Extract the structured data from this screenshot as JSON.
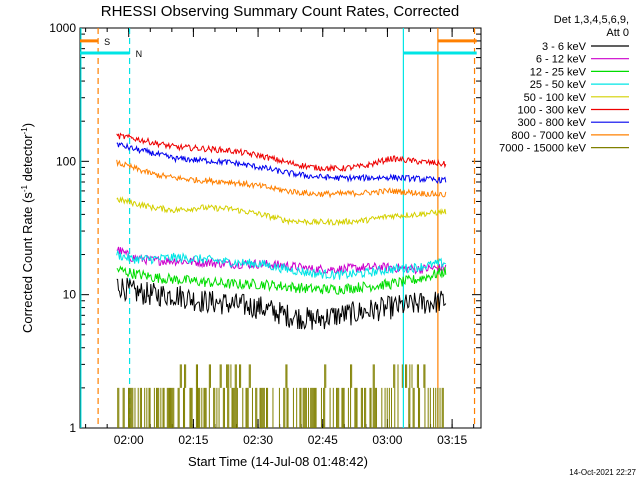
{
  "title": "RHESSI Observing Summary Count Rates, Corrected",
  "footer_timestamp": "14-Oct-2021 22:27",
  "chart_data": {
    "type": "line",
    "title": "RHESSI Observing Summary Count Rates, Corrected",
    "xlabel": "Start Time (14-Jul-08 01:48:42)",
    "ylabel": "Corrected Count Rate (s⁻¹ detector⁻¹)",
    "ylabel_main": "Corrected Count Rate (s",
    "ylabel_sup1": "-1",
    "ylabel_mid": " detector",
    "ylabel_sup2": "-1",
    "ylabel_end": ")",
    "yscale": "log",
    "ylim": [
      1,
      1000
    ],
    "xlim_minutes": [
      0,
      93
    ],
    "y_ticks": [
      {
        "v": 1,
        "label": "1"
      },
      {
        "v": 10,
        "label": "10"
      },
      {
        "v": 100,
        "label": "100"
      },
      {
        "v": 1000,
        "label": "1000"
      }
    ],
    "x_ticks": [
      {
        "m": 11.3,
        "label": "02:00"
      },
      {
        "m": 26.3,
        "label": "02:15"
      },
      {
        "m": 41.3,
        "label": "02:30"
      },
      {
        "m": 56.3,
        "label": "02:45"
      },
      {
        "m": 71.3,
        "label": "03:00"
      },
      {
        "m": 86.3,
        "label": "03:15"
      }
    ],
    "legend_header": [
      "Det 1,3,4,5,6,9,",
      "Att 0"
    ],
    "series": [
      {
        "name": "3 - 6 keV",
        "color": "#000000",
        "x": [
          8.5,
          12,
          17,
          22,
          28,
          35,
          42,
          48,
          54,
          60,
          63,
          66,
          72,
          78,
          85
        ],
        "y": [
          12,
          10.5,
          10,
          10,
          9,
          8.5,
          8,
          7,
          6.5,
          7,
          7.2,
          7.5,
          8,
          8.5,
          9
        ]
      },
      {
        "name": "6 - 12 keV",
        "color": "#cc00cc",
        "x": [
          8.5,
          12,
          17,
          22,
          28,
          35,
          42,
          48,
          54,
          60,
          66,
          72,
          78,
          85
        ],
        "y": [
          22,
          19,
          18,
          18,
          17.5,
          17,
          17,
          16.5,
          15.5,
          15.5,
          16,
          16,
          15.5,
          16
        ]
      },
      {
        "name": "12 - 25 keV",
        "color": "#00dd00",
        "x": [
          8.5,
          12,
          17,
          22,
          28,
          35,
          42,
          48,
          54,
          60,
          66,
          72,
          78,
          85
        ],
        "y": [
          15.5,
          14.5,
          13.5,
          13,
          12.5,
          12,
          12,
          11.5,
          11,
          11,
          11.5,
          12,
          13,
          15
        ]
      },
      {
        "name": "25 - 50 keV",
        "color": "#00e5e5",
        "x": [
          8.5,
          12,
          17,
          22,
          28,
          35,
          42,
          48,
          54,
          60,
          66,
          72,
          78,
          85
        ],
        "y": [
          20,
          18.5,
          18.5,
          19,
          18.5,
          17.5,
          17,
          15.5,
          14.5,
          14,
          14.5,
          15.5,
          16,
          17.5
        ]
      },
      {
        "name": "50 - 100 keV",
        "color": "#d4d000",
        "x": [
          8.5,
          12,
          17,
          22,
          28,
          35,
          42,
          48,
          54,
          60,
          66,
          72,
          78,
          85
        ],
        "y": [
          52,
          49,
          45,
          43,
          45,
          44,
          40,
          36,
          35,
          35,
          36,
          39,
          40,
          42
        ]
      },
      {
        "name": "100 - 300 keV",
        "color": "#ee0000",
        "x": [
          8.5,
          12,
          17,
          22,
          28,
          35,
          42,
          48,
          54,
          60,
          66,
          72,
          78,
          85
        ],
        "y": [
          155,
          150,
          138,
          128,
          125,
          120,
          110,
          98,
          90,
          88,
          92,
          105,
          100,
          95
        ]
      },
      {
        "name": "300 - 800 keV",
        "color": "#0000ee",
        "x": [
          8.5,
          12,
          17,
          22,
          28,
          35,
          42,
          48,
          54,
          60,
          66,
          72,
          78,
          85
        ],
        "y": [
          135,
          125,
          115,
          105,
          102,
          98,
          90,
          82,
          77,
          75,
          75,
          76,
          74,
          72
        ]
      },
      {
        "name": "800 - 7000 keV",
        "color": "#ff8000",
        "x": [
          8.5,
          12,
          17,
          22,
          28,
          35,
          42,
          48,
          54,
          60,
          66,
          72,
          78,
          85
        ],
        "y": [
          98,
          90,
          80,
          75,
          72,
          70,
          65,
          60,
          57,
          57,
          58,
          60,
          58,
          56
        ]
      },
      {
        "name": "7000 - 15000 keV",
        "color": "#808000",
        "x": [
          8.5,
          85
        ],
        "y": [
          1,
          2
        ]
      }
    ],
    "flag_bars": [
      {
        "label": "S",
        "color": "#ff8000",
        "y": 800,
        "segments": [
          [
            0,
            4.2
          ],
          [
            83,
            92
          ]
        ]
      },
      {
        "label": "N",
        "color": "#00e5e5",
        "y": 650,
        "segments": [
          [
            0,
            11.5
          ],
          [
            75,
            92
          ]
        ]
      }
    ],
    "vertical_lines": [
      {
        "m": 0.2,
        "color": "#00e5e5",
        "dash": false
      },
      {
        "m": 4.2,
        "color": "#ff8000",
        "dash": true
      },
      {
        "m": 11.5,
        "color": "#00e5e5",
        "dash": true
      },
      {
        "m": 75,
        "color": "#00e5e5",
        "dash": false
      },
      {
        "m": 83,
        "color": "#ff8000",
        "dash": false
      },
      {
        "m": 91.5,
        "color": "#ff8000",
        "dash": true
      }
    ],
    "olive_noise": {
      "color": "#808000",
      "levels": [
        1,
        2,
        3
      ]
    }
  }
}
